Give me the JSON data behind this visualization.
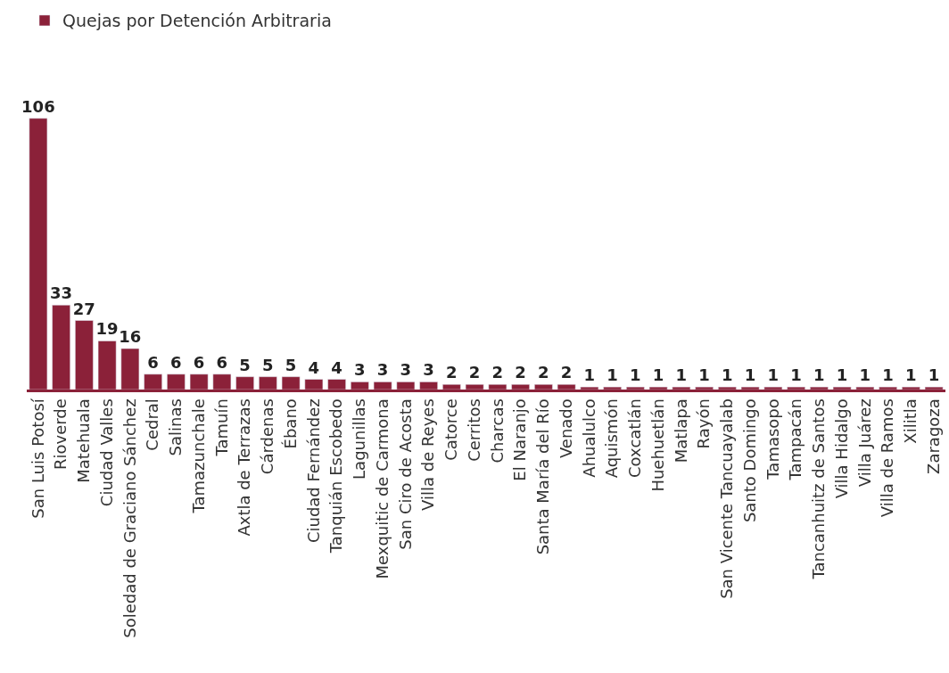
{
  "chart_data": {
    "type": "bar",
    "categories": [
      "San Luis Potosí",
      "Rioverde",
      "Matehuala",
      "Ciudad Valles",
      "Soledad de Graciano Sánchez",
      "Cedral",
      "Salinas",
      "Tamazunchale",
      "Tamuín",
      "Axtla de Terrazas",
      "Cárdenas",
      "Ébano",
      "Ciudad Fernández",
      "Tanquián Escobedo",
      "Lagunillas",
      "Mexquitic de Carmona",
      "San Ciro de Acosta",
      "Villa de Reyes",
      "Catorce",
      "Cerritos",
      "Charcas",
      "El Naranjo",
      "Santa María del Río",
      "Venado",
      "Ahualulco",
      "Aquismón",
      "Coxcatlán",
      "Huehuetlán",
      "Matlapa",
      "Rayón",
      "San Vicente Tancuayalab",
      "Santo Domingo",
      "Tamasopo",
      "Tampacán",
      "Tancanhuitz de Santos",
      "Villa Hidalgo",
      "Villa Juárez",
      "Villa de Ramos",
      "Xilitla",
      "Zaragoza"
    ],
    "series": [
      {
        "name": "Quejas por Detención Arbitraria",
        "color": "#8b2139",
        "values": [
          106,
          33,
          27,
          19,
          16,
          6,
          6,
          6,
          6,
          5,
          5,
          5,
          4,
          4,
          3,
          3,
          3,
          3,
          2,
          2,
          2,
          2,
          2,
          2,
          1,
          1,
          1,
          1,
          1,
          1,
          1,
          1,
          1,
          1,
          1,
          1,
          1,
          1,
          1,
          1
        ]
      }
    ],
    "data_labels": true,
    "legend": "top left",
    "tick_labels": "x"
  }
}
